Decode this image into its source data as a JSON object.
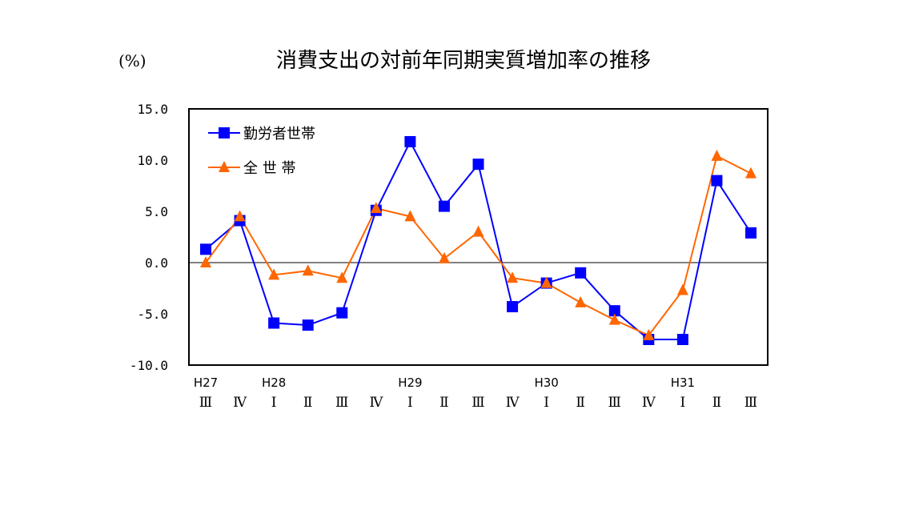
{
  "chart_data": {
    "type": "line",
    "title": "消費支出の対前年同期実質増加率の推移",
    "ylabel": "(%)",
    "xlabel": "",
    "ylim": [
      -10.0,
      15.0
    ],
    "yticks": [
      "15.0",
      "10.0",
      "5.0",
      "0.0",
      "-5.0",
      "-10.0"
    ],
    "ytick_values": [
      15,
      10,
      5,
      0,
      -5,
      -10
    ],
    "grid": false,
    "zero_line": true,
    "legend_position": "upper-left inside",
    "year_labels": [
      {
        "index": 0,
        "label": "H27"
      },
      {
        "index": 2,
        "label": "H28"
      },
      {
        "index": 6,
        "label": "H29"
      },
      {
        "index": 10,
        "label": "H30"
      },
      {
        "index": 14,
        "label": "H31"
      }
    ],
    "categories": [
      "Ⅲ",
      "Ⅳ",
      "Ⅰ",
      "Ⅱ",
      "Ⅲ",
      "Ⅳ",
      "Ⅰ",
      "Ⅱ",
      "Ⅲ",
      "Ⅳ",
      "Ⅰ",
      "Ⅱ",
      "Ⅲ",
      "Ⅳ",
      "Ⅰ",
      "Ⅱ",
      "Ⅲ"
    ],
    "series": [
      {
        "name": "勤労者世帯",
        "marker": "square",
        "color": "#0000FF",
        "values": [
          1.3,
          4.1,
          -5.9,
          -6.1,
          -4.9,
          5.1,
          11.8,
          5.5,
          9.6,
          -4.3,
          -2.0,
          -1.0,
          -4.7,
          -7.5,
          -7.5,
          8.0,
          2.9
        ]
      },
      {
        "name": "全 世 帯",
        "marker": "triangle",
        "color": "#FF6600",
        "values": [
          0.0,
          4.5,
          -1.2,
          -0.8,
          -1.5,
          5.3,
          4.5,
          0.4,
          3.0,
          -1.5,
          -2.0,
          -3.9,
          -5.6,
          -7.1,
          -2.7,
          10.4,
          8.7
        ]
      }
    ]
  },
  "title": "消費支出の対前年同期実質増加率の推移",
  "unit_label": "(%)",
  "legend": {
    "items": [
      {
        "label": "勤労者世帯",
        "color": "#0000FF"
      },
      {
        "label": "全 世 帯",
        "color": "#FF6600"
      }
    ]
  }
}
